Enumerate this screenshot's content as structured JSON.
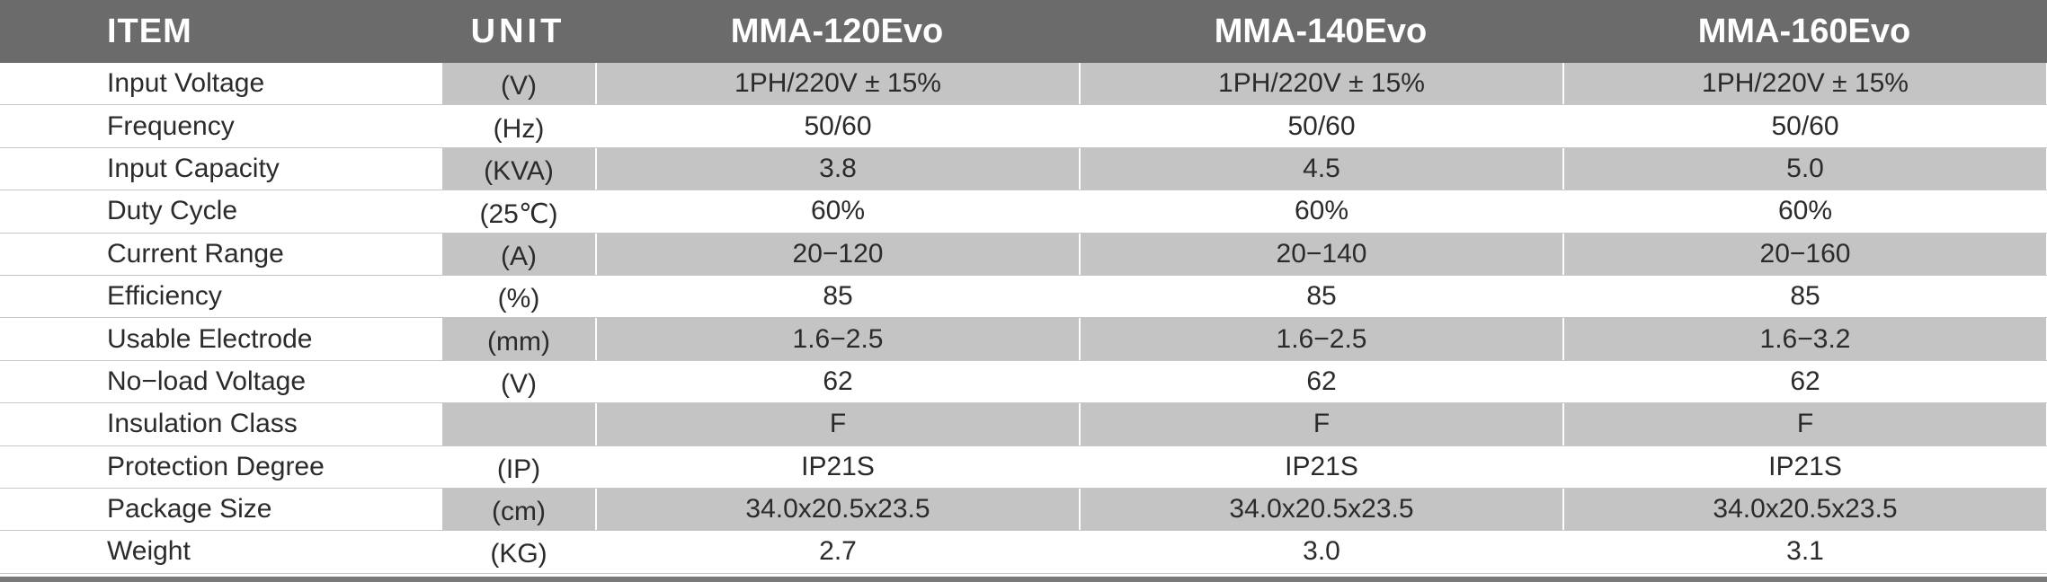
{
  "header": {
    "item": "ITEM",
    "unit": "UNIT",
    "models": [
      "MMA-120Evo",
      "MMA-140Evo",
      "MMA-160Evo"
    ]
  },
  "rows": [
    {
      "item": "Input Voltage",
      "unit": "(V)",
      "values": [
        "1PH/220V ± 15%",
        "1PH/220V ± 15%",
        "1PH/220V ± 15%"
      ]
    },
    {
      "item": "Frequency",
      "unit": "(Hz)",
      "values": [
        "50/60",
        "50/60",
        "50/60"
      ]
    },
    {
      "item": "Input Capacity",
      "unit": "(KVA)",
      "values": [
        "3.8",
        "4.5",
        "5.0"
      ]
    },
    {
      "item": "Duty Cycle",
      "unit": "(25℃)",
      "values": [
        "60%",
        "60%",
        "60%"
      ]
    },
    {
      "item": "Current Range",
      "unit": "(A)",
      "values": [
        "20−120",
        "20−140",
        "20−160"
      ]
    },
    {
      "item": "Efficiency",
      "unit": "(%)",
      "values": [
        "85",
        "85",
        "85"
      ]
    },
    {
      "item": "Usable Electrode",
      "unit": "(mm)",
      "values": [
        "1.6−2.5",
        "1.6−2.5",
        "1.6−3.2"
      ]
    },
    {
      "item": "No−load Voltage",
      "unit": "(V)",
      "values": [
        "62",
        "62",
        "62"
      ]
    },
    {
      "item": "Insulation Class",
      "unit": "",
      "values": [
        "F",
        "F",
        "F"
      ]
    },
    {
      "item": "Protection Degree",
      "unit": "(IP)",
      "values": [
        "IP21S",
        "IP21S",
        "IP21S"
      ]
    },
    {
      "item": "Package Size",
      "unit": "(cm)",
      "values": [
        "34.0x20.5x23.5",
        "34.0x20.5x23.5",
        "34.0x20.5x23.5"
      ]
    },
    {
      "item": "Weight",
      "unit": "(KG)",
      "values": [
        "2.7",
        "3.0",
        "3.1"
      ]
    }
  ],
  "colors": {
    "header_bg": "#6b6b6b",
    "shade": "#c4c4c4",
    "text": "#2b2b2b"
  }
}
